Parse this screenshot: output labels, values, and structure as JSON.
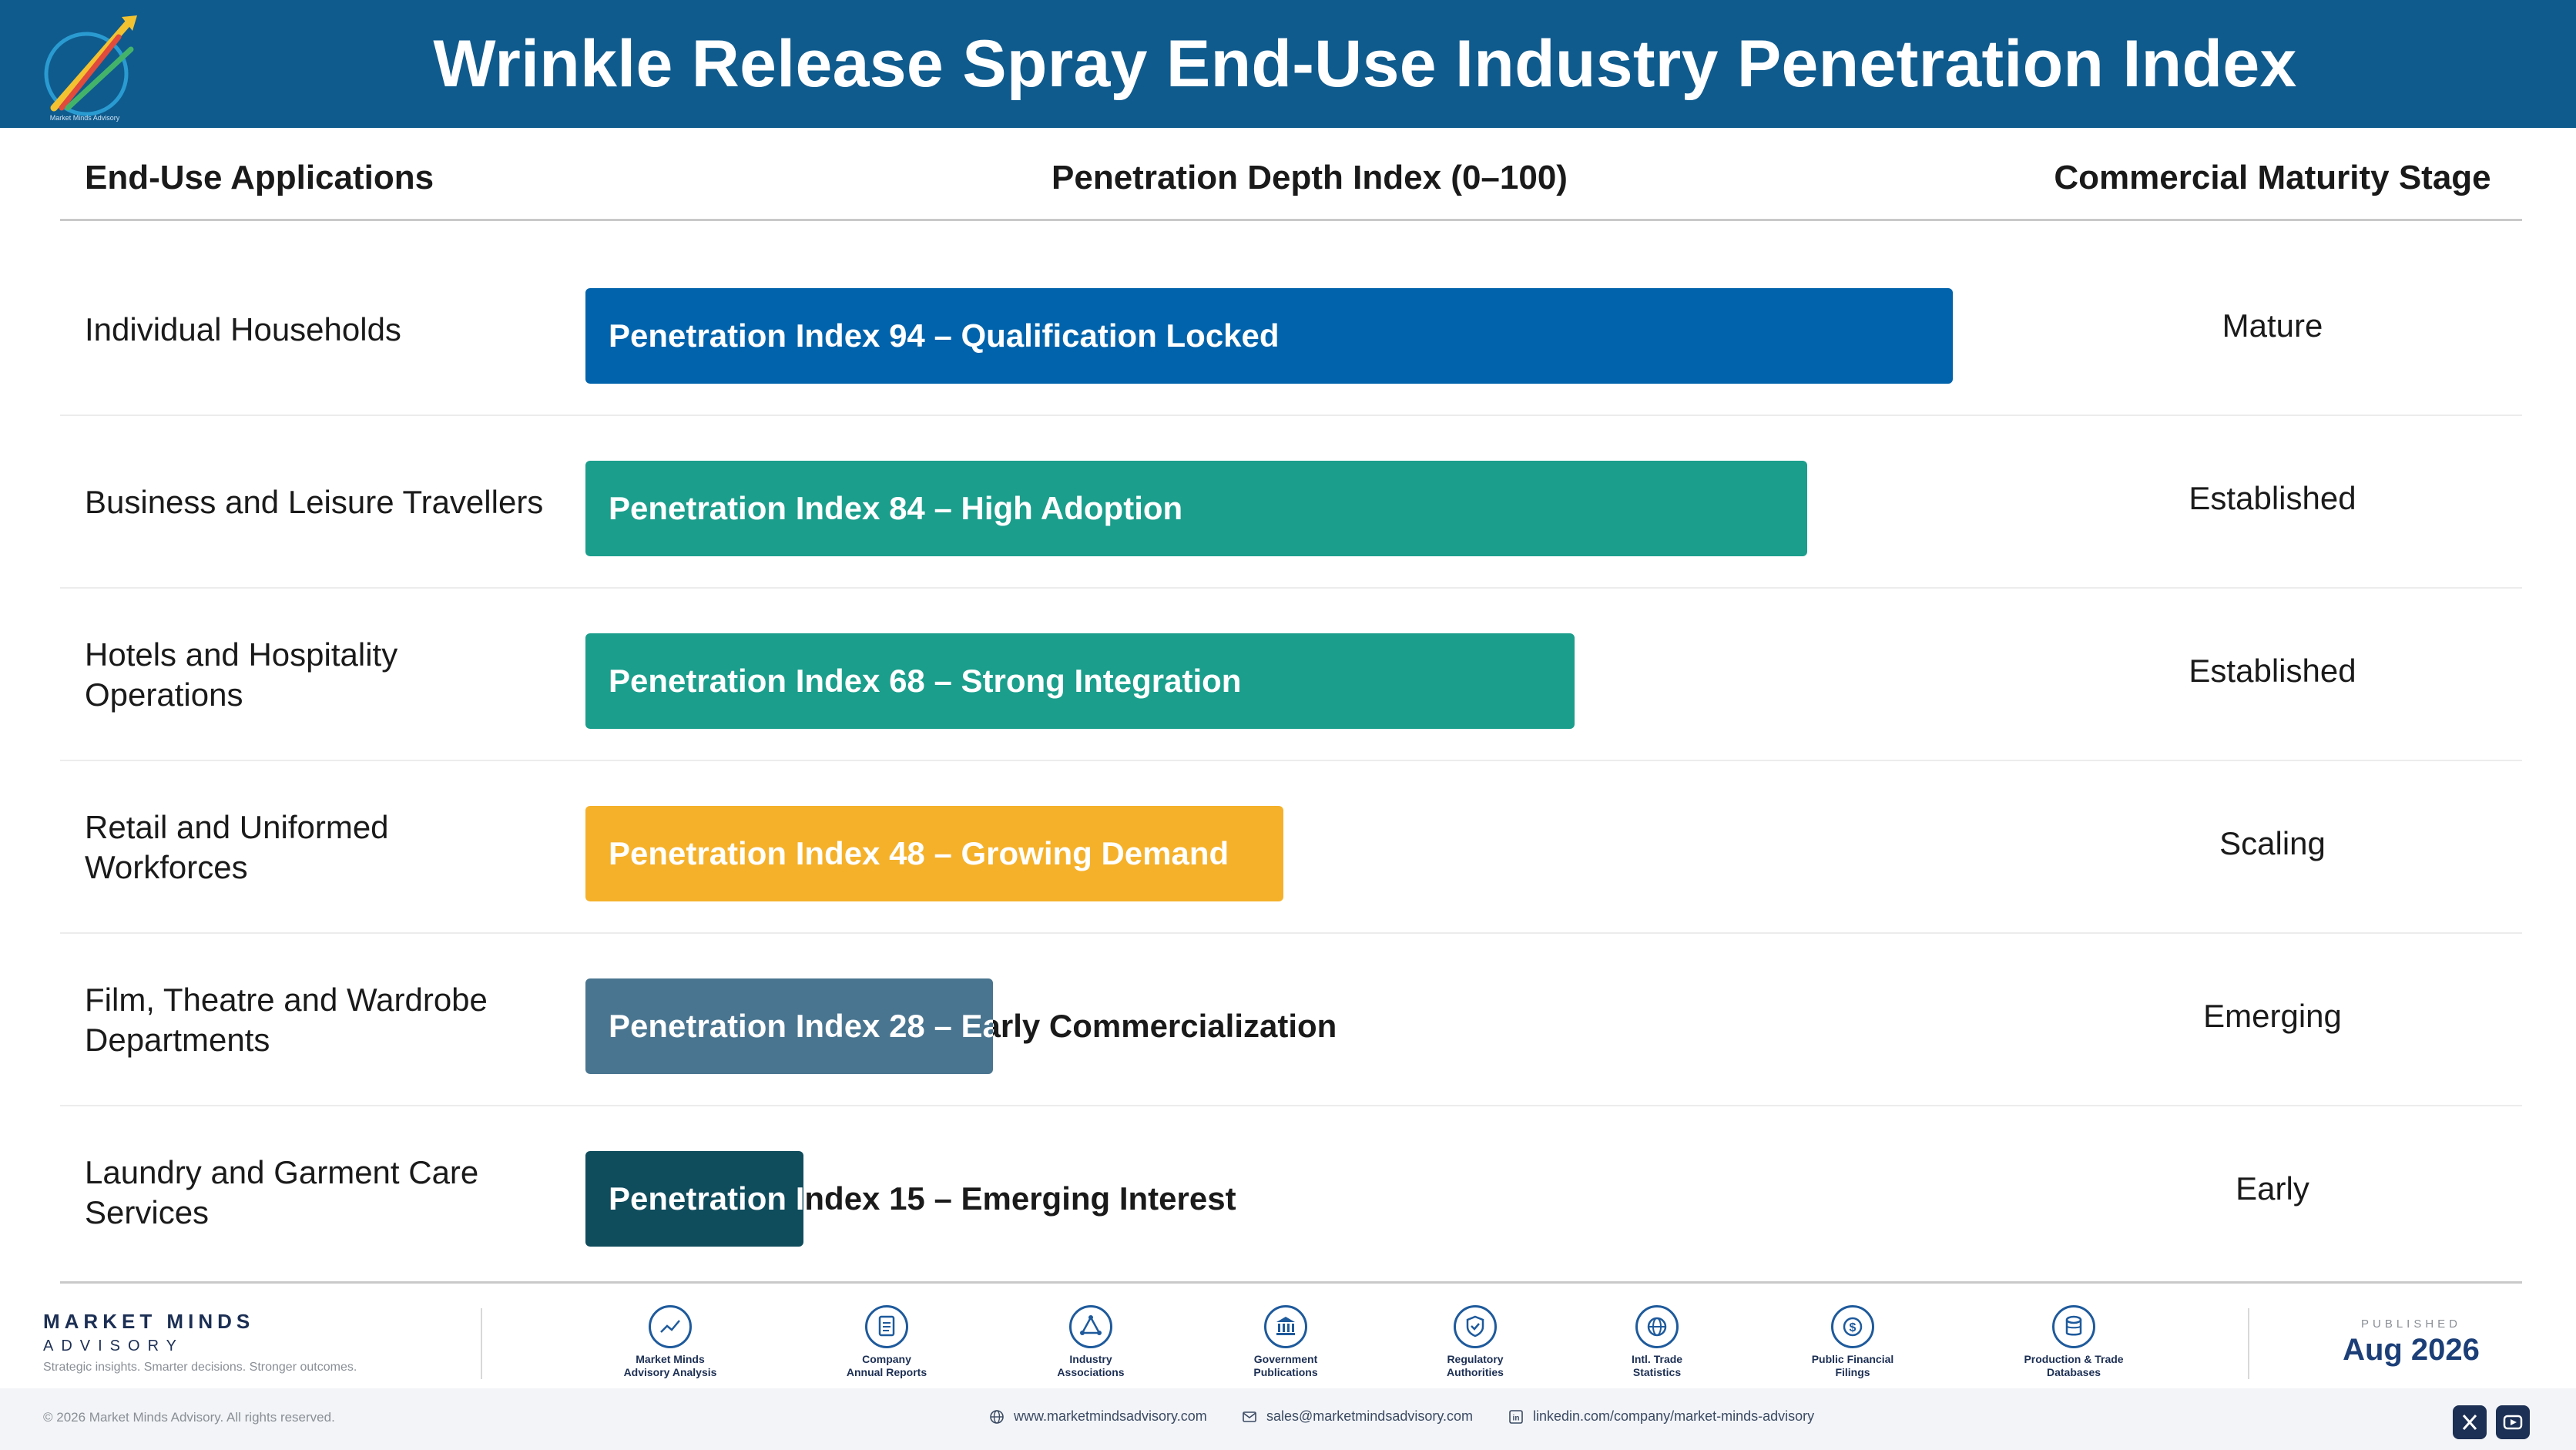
{
  "header": {
    "title": "Wrinkle Release Spray End-Use Industry Penetration Index"
  },
  "columns": {
    "applications": "End-Use Applications",
    "index": "Penetration Depth Index (0–100)",
    "stage": "Commercial Maturity Stage"
  },
  "chart_data": {
    "type": "bar",
    "orientation": "horizontal",
    "xlim": [
      0,
      100
    ],
    "categories": [
      "Individual Households",
      "Business and Leisure Travellers",
      "Hotels and Hospitality Operations",
      "Retail and Uniformed Workforces",
      "Film, Theatre and Wardrobe Departments",
      "Laundry and Garment Care Services"
    ],
    "values": [
      94,
      84,
      68,
      48,
      28,
      15
    ],
    "bar_labels": [
      "Penetration Index 94 – Qualification Locked",
      "Penetration Index 84 – High Adoption",
      "Penetration Index 68 – Strong Integration",
      "Penetration Index 48 – Growing Demand",
      "Penetration Index 28 – Early Commercialization",
      "Penetration Index 15 – Emerging Interest"
    ],
    "bar_colors": [
      "#0163ab",
      "#1b9e8c",
      "#1b9e8c",
      "#f5b12a",
      "#4a7590",
      "#0f4c5c"
    ],
    "stages": [
      "Mature",
      "Established",
      "Established",
      "Scaling",
      "Emerging",
      "Early"
    ]
  },
  "footer": {
    "brand_name": "MARKET MINDS",
    "brand_sub": "ADVISORY",
    "tagline": "Strategic insights. Smarter decisions. Stronger outcomes.",
    "sources": [
      {
        "label1": "Market Minds",
        "label2": "Advisory Analysis",
        "icon": "line-chart-icon"
      },
      {
        "label1": "Company",
        "label2": "Annual Reports",
        "icon": "document-icon"
      },
      {
        "label1": "Industry",
        "label2": "Associations",
        "icon": "network-icon"
      },
      {
        "label1": "Government",
        "label2": "Publications",
        "icon": "government-building-icon"
      },
      {
        "label1": "Regulatory",
        "label2": "Authorities",
        "icon": "shield-icon"
      },
      {
        "label1": "Intl. Trade",
        "label2": "Statistics",
        "icon": "globe-icon"
      },
      {
        "label1": "Public Financial",
        "label2": "Filings",
        "icon": "dollar-icon"
      },
      {
        "label1": "Production & Trade",
        "label2": "Databases",
        "icon": "database-icon"
      }
    ],
    "published_label": "PUBLISHED",
    "published_date": "Aug 2026",
    "copyright": "© 2026 Market Minds Advisory. All rights reserved.",
    "website": "www.marketmindsadvisory.com",
    "email": "sales@marketmindsadvisory.com",
    "linkedin": "linkedin.com/company/market-minds-advisory",
    "colors": {
      "brand_navy": "#1c2f54",
      "header_blue": "#0f5b8e"
    }
  }
}
